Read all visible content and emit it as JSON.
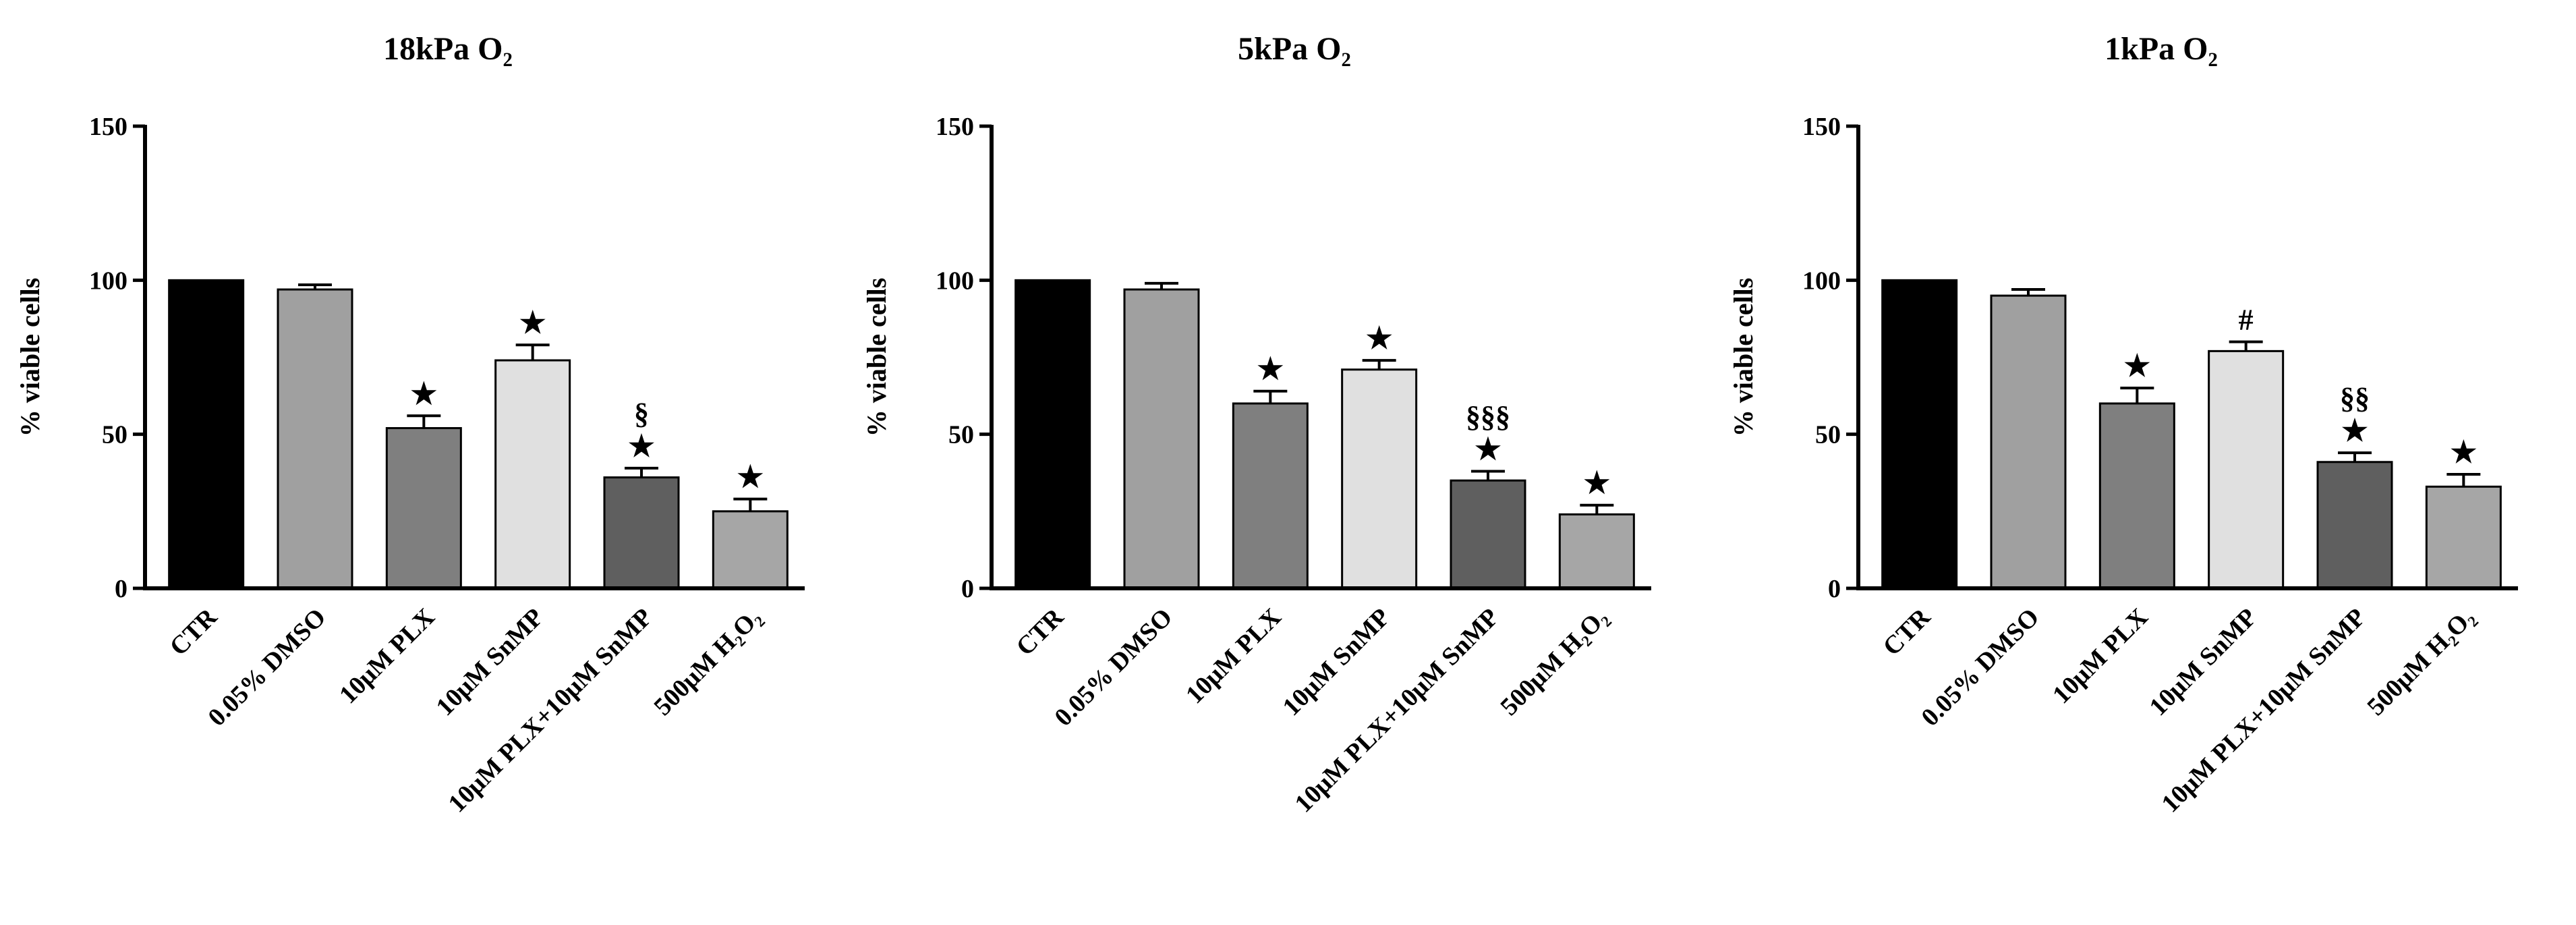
{
  "chart_data": [
    {
      "type": "bar",
      "title": "18kPa O₂",
      "y_label": "% viable cells",
      "categories": [
        "CTR",
        "0.05% DMSO",
        "10μM PLX",
        "10μM SnMP",
        "10μM PLX+10μM SnMP",
        "500μM H₂O₂"
      ],
      "values": [
        100,
        97,
        52,
        74,
        36,
        25
      ],
      "errors": [
        null,
        1.5,
        4,
        5,
        3,
        4
      ],
      "colors": [
        "#000000",
        "#a0a0a0",
        "#7f7f7f",
        "#e0e0e0",
        "#5f5f5f",
        "#a6a6a6"
      ],
      "annotations": [
        [],
        [],
        [
          "★"
        ],
        [
          "★"
        ],
        [
          "★",
          "§"
        ],
        [
          "★"
        ]
      ],
      "ylim": [
        0,
        150
      ],
      "yticks": [
        0,
        50,
        100,
        150
      ]
    },
    {
      "type": "bar",
      "title": "5kPa O₂",
      "y_label": "% viable cells",
      "categories": [
        "CTR",
        "0.05% DMSO",
        "10μM PLX",
        "10μM SnMP",
        "10μM PLX+10μM SnMP",
        "500μM H₂O₂"
      ],
      "values": [
        100,
        97,
        60,
        71,
        35,
        24
      ],
      "errors": [
        null,
        2,
        4,
        3,
        3,
        3
      ],
      "colors": [
        "#000000",
        "#a0a0a0",
        "#7f7f7f",
        "#e0e0e0",
        "#5f5f5f",
        "#a6a6a6"
      ],
      "annotations": [
        [],
        [],
        [
          "★"
        ],
        [
          "★"
        ],
        [
          "★",
          "§§§"
        ],
        [
          "★"
        ]
      ],
      "ylim": [
        0,
        150
      ],
      "yticks": [
        0,
        50,
        100,
        150
      ]
    },
    {
      "type": "bar",
      "title": "1kPa O₂",
      "y_label": "% viable cells",
      "categories": [
        "CTR",
        "0.05% DMSO",
        "10μM PLX",
        "10μM SnMP",
        "10μM PLX+10μM SnMP",
        "500μM H₂O₂"
      ],
      "values": [
        100,
        95,
        60,
        77,
        41,
        33
      ],
      "errors": [
        null,
        2,
        5,
        3,
        3,
        4
      ],
      "colors": [
        "#000000",
        "#a0a0a0",
        "#7f7f7f",
        "#e0e0e0",
        "#5f5f5f",
        "#a6a6a6"
      ],
      "annotations": [
        [],
        [],
        [
          "★"
        ],
        [
          "#"
        ],
        [
          "★",
          "§§"
        ],
        [
          "★"
        ]
      ],
      "ylim": [
        0,
        150
      ],
      "yticks": [
        0,
        50,
        100,
        150
      ]
    }
  ]
}
